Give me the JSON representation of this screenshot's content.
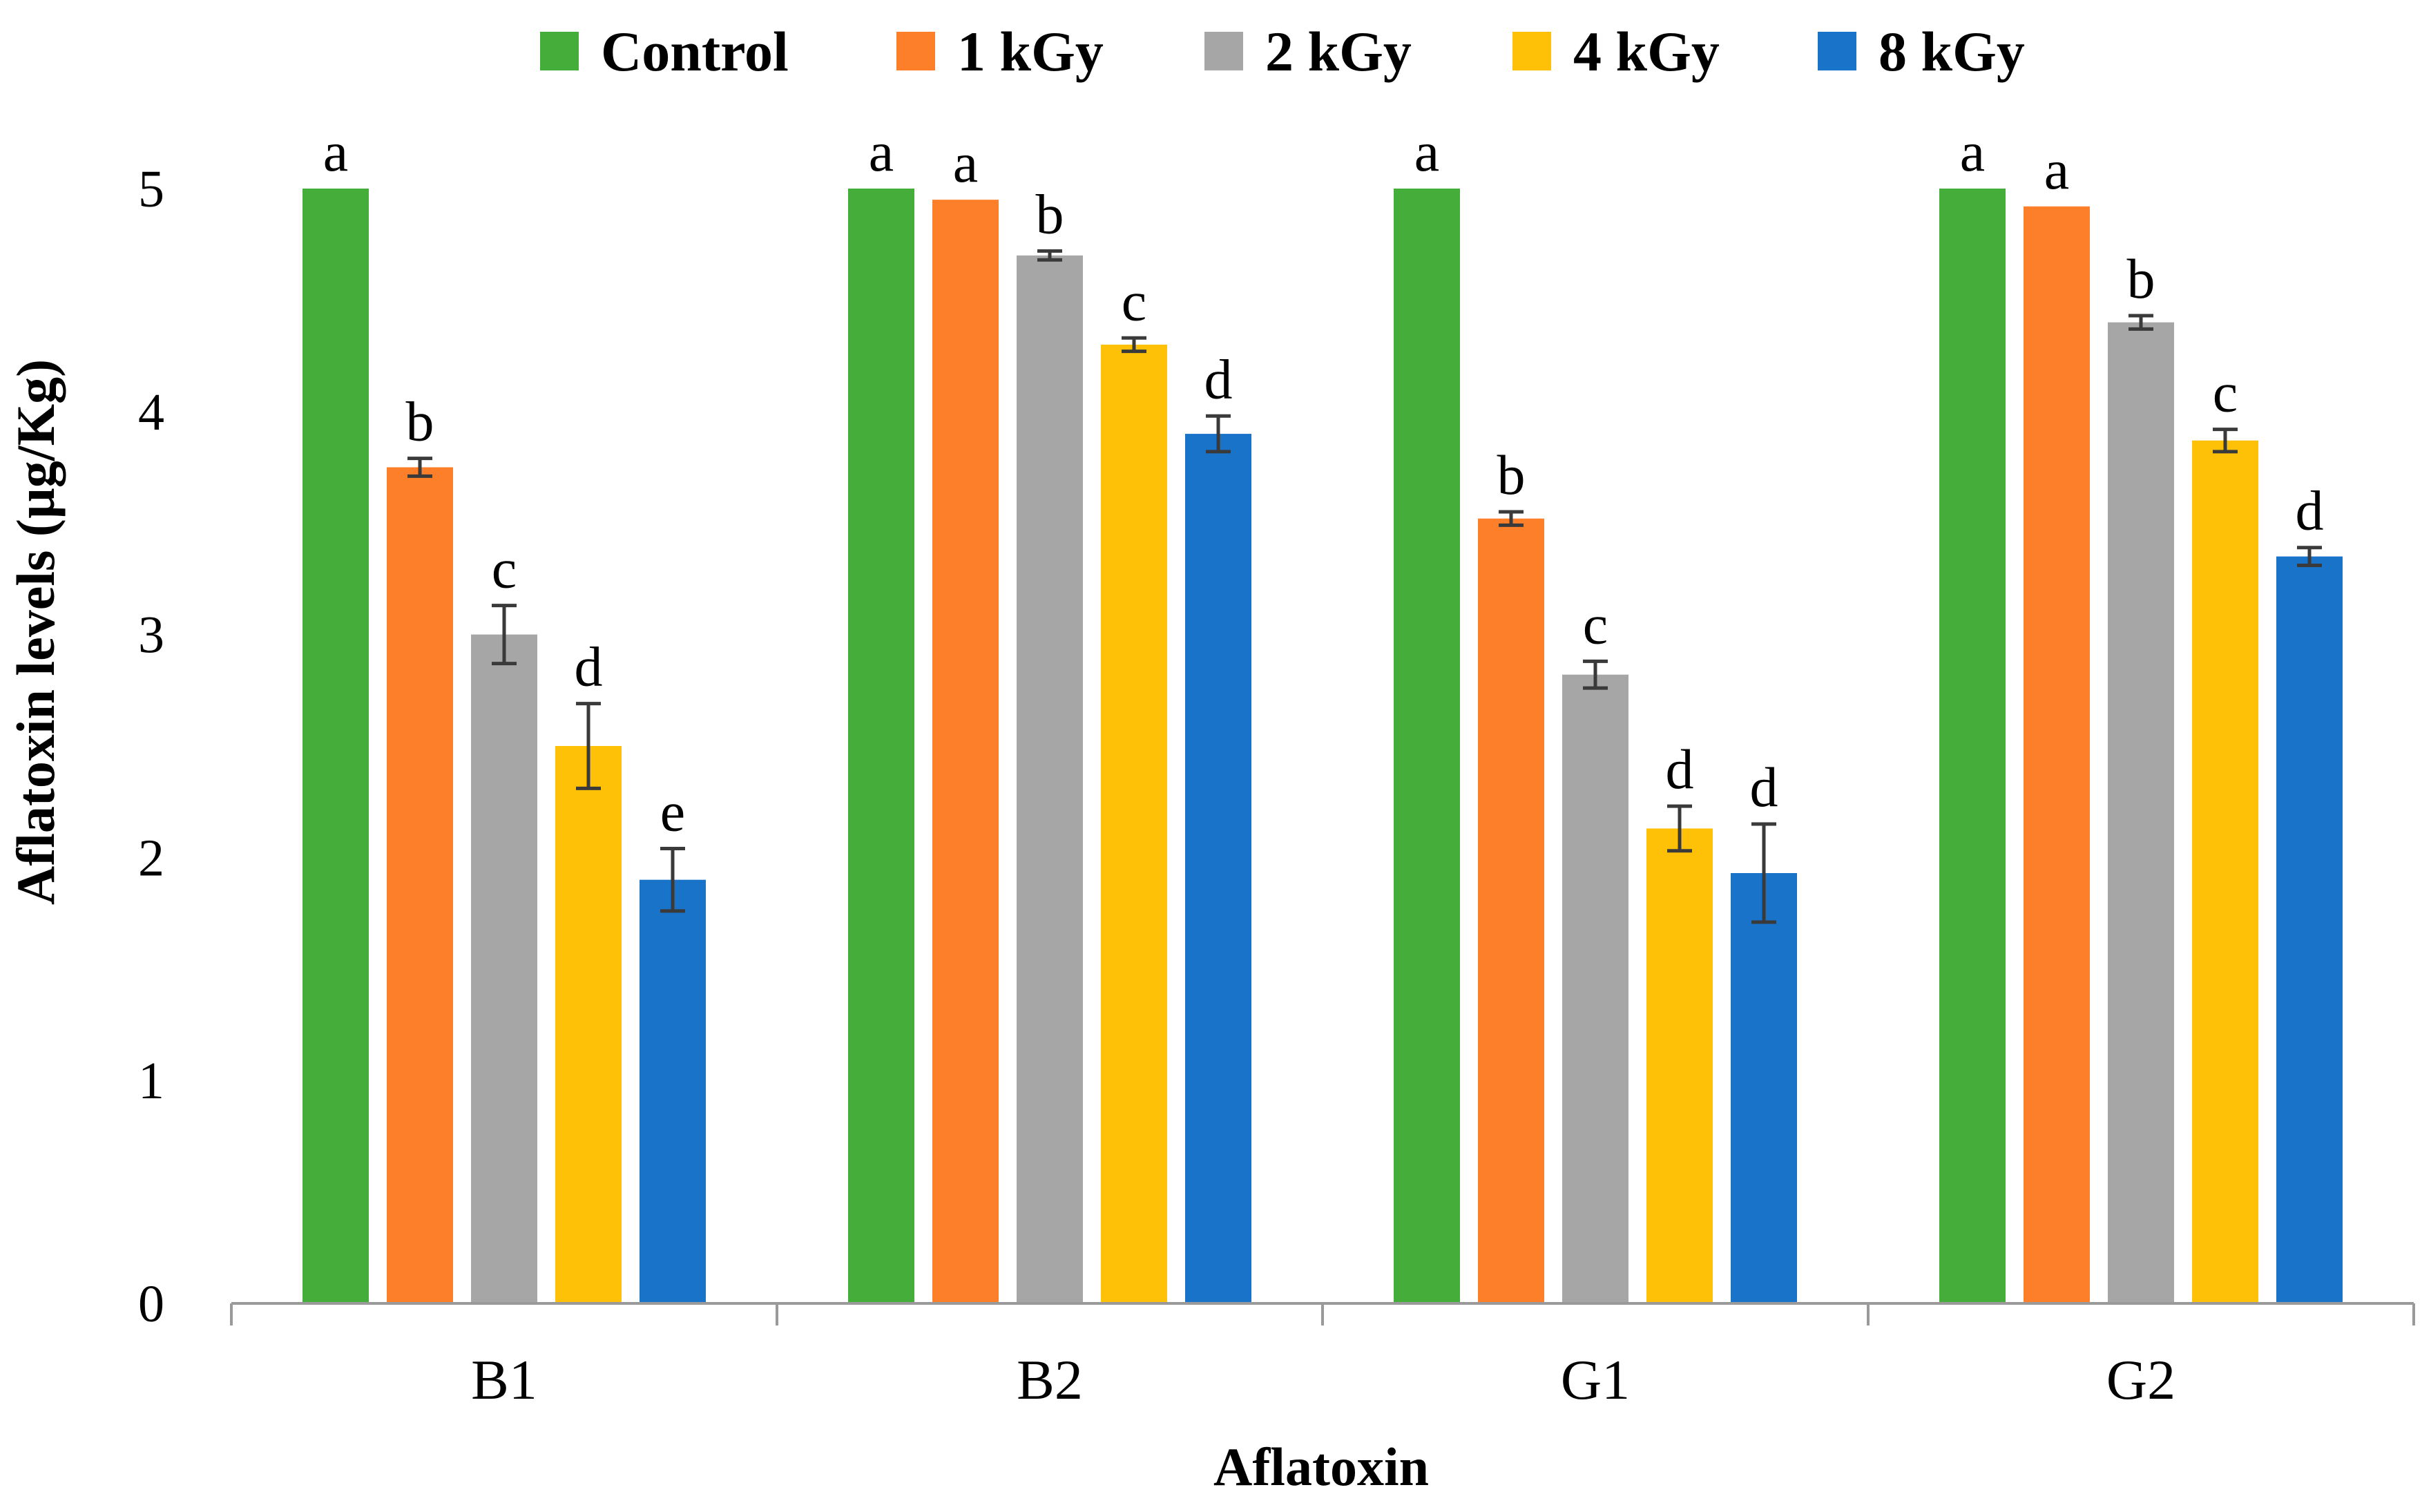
{
  "chart_data": {
    "type": "bar",
    "xlabel": "Aflatoxin",
    "ylabel": "Aflatoxin levels (µg/Kg)",
    "ylim": [
      0,
      5
    ],
    "yticks": [
      "0",
      "1",
      "2",
      "3",
      "4",
      "5"
    ],
    "legend_position": "top-center",
    "grid": false,
    "categories": [
      "B1",
      "B2",
      "G1",
      "G2"
    ],
    "series": [
      {
        "name": "Control",
        "color": "#45AE3A",
        "values": [
          5.0,
          5.0,
          5.0,
          5.0
        ],
        "errors": [
          0.0,
          0.0,
          0.0,
          0.0
        ],
        "letters": [
          "a",
          "a",
          "a",
          "a"
        ]
      },
      {
        "name": "1 kGy",
        "color": "#FD7F29",
        "values": [
          3.75,
          4.95,
          3.52,
          4.92
        ],
        "errors": [
          0.04,
          0.0,
          0.03,
          0.0
        ],
        "letters": [
          "b",
          "a",
          "b",
          "a"
        ]
      },
      {
        "name": "2 kGy",
        "color": "#A6A6A6",
        "values": [
          3.0,
          4.7,
          2.82,
          4.4
        ],
        "errors": [
          0.13,
          0.02,
          0.06,
          0.03
        ],
        "letters": [
          "c",
          "b",
          "c",
          "b"
        ]
      },
      {
        "name": "4 kGy",
        "color": "#FEC107",
        "values": [
          2.5,
          4.3,
          2.13,
          3.87
        ],
        "errors": [
          0.19,
          0.03,
          0.1,
          0.05
        ],
        "letters": [
          "d",
          "c",
          "d",
          "c"
        ]
      },
      {
        "name": "8 kGy",
        "color": "#1973C9",
        "values": [
          1.9,
          3.9,
          1.93,
          3.35
        ],
        "errors": [
          0.14,
          0.08,
          0.22,
          0.04
        ],
        "letters": [
          "e",
          "d",
          "d",
          "d"
        ]
      }
    ]
  }
}
